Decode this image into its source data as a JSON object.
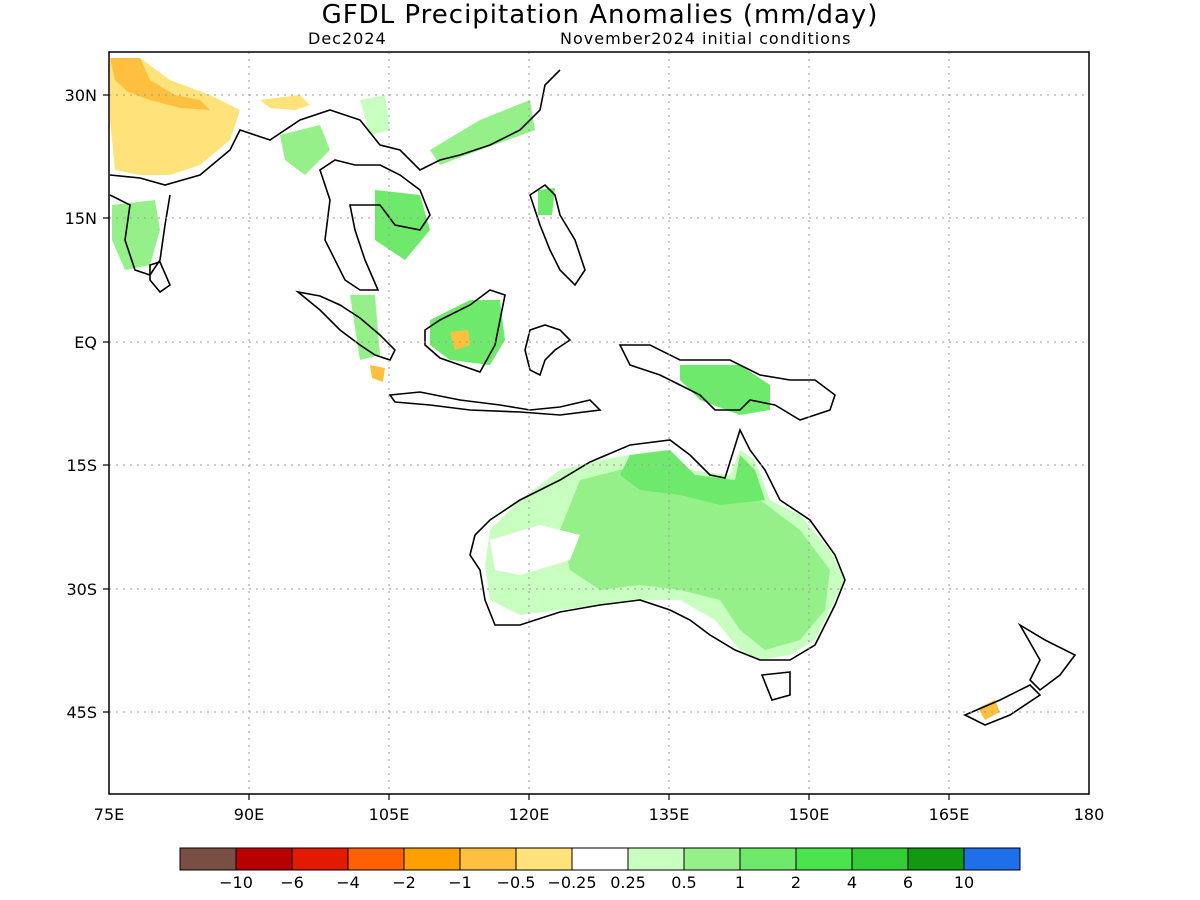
{
  "title": "GFDL Precipitation Anomalies (mm/day)",
  "subtitle_left": "Dec2024",
  "subtitle_right": "November2024 initial conditions",
  "lat_labels": [
    "30N",
    "15N",
    "EQ",
    "15S",
    "30S",
    "45S"
  ],
  "lon_labels": [
    "75E",
    "90E",
    "105E",
    "120E",
    "135E",
    "150E",
    "165E",
    "180"
  ],
  "map_extent": {
    "lon": [
      75,
      180
    ],
    "lat": [
      -55,
      35
    ]
  },
  "colorbar": {
    "colors": [
      "#7a4f43",
      "#b80000",
      "#e21a00",
      "#ff6000",
      "#ffa000",
      "#ffc040",
      "#ffe27a",
      "#ffffff",
      "#c8ffc0",
      "#96f08a",
      "#6ee96c",
      "#4ae54e",
      "#33cc36",
      "#119911",
      "#1e6fe8"
    ],
    "labels": [
      "−10",
      "−6",
      "−4",
      "−2",
      "−1",
      "−0.5",
      "−0.25",
      "0.25",
      "0.5",
      "1",
      "2",
      "4",
      "6",
      "10"
    ]
  }
}
